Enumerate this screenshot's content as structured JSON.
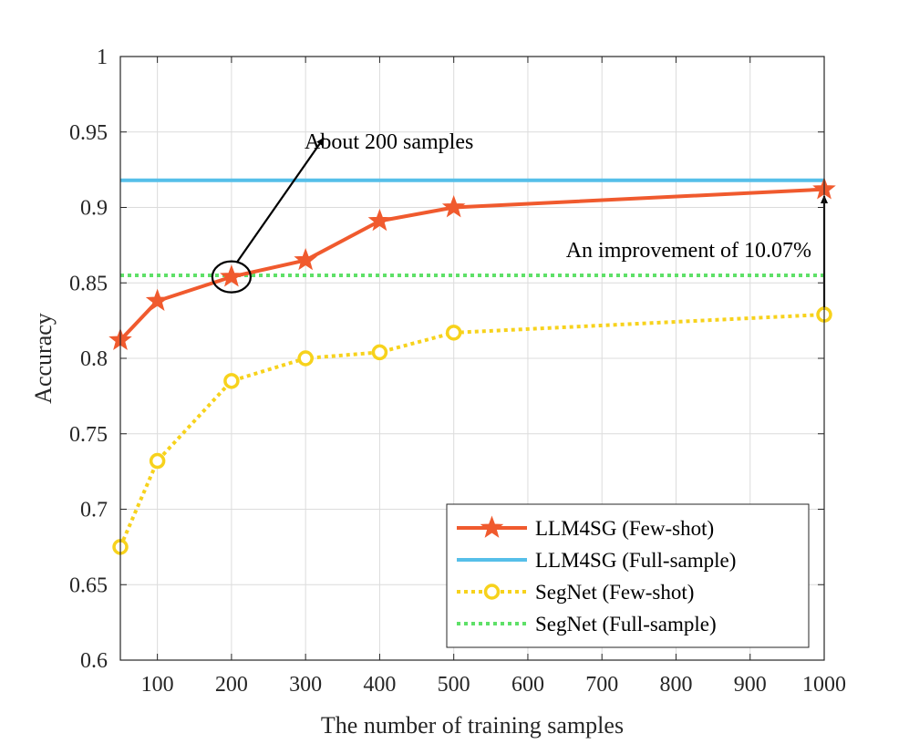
{
  "chart_data": {
    "type": "line",
    "title": "",
    "xlabel": "The number of training samples",
    "ylabel": "Accuracy",
    "xlim": [
      50,
      1000
    ],
    "ylim": [
      0.6,
      1.0
    ],
    "xticks": [
      100,
      200,
      300,
      400,
      500,
      600,
      700,
      800,
      900,
      1000
    ],
    "xtick_labels": [
      "100",
      "200",
      "300",
      "400",
      "500",
      "600",
      "700",
      "800",
      "900",
      "1000"
    ],
    "yticks": [
      0.6,
      0.65,
      0.7,
      0.75,
      0.8,
      0.85,
      0.9,
      0.95,
      1.0
    ],
    "ytick_labels": [
      "0.6",
      "0.65",
      "0.7",
      "0.75",
      "0.8",
      "0.85",
      "0.9",
      "0.95",
      "1"
    ],
    "grid": true,
    "legend_position": "bottom-right",
    "series": [
      {
        "name": "LLM4SG (Few-shot)",
        "color": "#f05a2e",
        "line_style": "solid",
        "marker": "star",
        "x": [
          50,
          100,
          200,
          300,
          400,
          500,
          1000
        ],
        "values": [
          0.812,
          0.838,
          0.854,
          0.865,
          0.891,
          0.9,
          0.912
        ]
      },
      {
        "name": "LLM4SG (Full-sample)",
        "color": "#56bfe9",
        "line_style": "solid",
        "marker": "none",
        "x": [
          50,
          1000
        ],
        "values": [
          0.918,
          0.918
        ]
      },
      {
        "name": "SegNet (Few-shot)",
        "color": "#f7d21c",
        "line_style": "dotted",
        "marker": "circle",
        "x": [
          50,
          100,
          200,
          300,
          400,
          500,
          1000
        ],
        "values": [
          0.675,
          0.732,
          0.785,
          0.8,
          0.804,
          0.817,
          0.829
        ]
      },
      {
        "name": "SegNet (Full-sample)",
        "color": "#5ee068",
        "line_style": "dotted",
        "marker": "none",
        "x": [
          50,
          1000
        ],
        "values": [
          0.855,
          0.855
        ]
      }
    ],
    "annotations": [
      {
        "text": "About 200 samples",
        "circle_at": {
          "x": 200,
          "y": 0.854
        },
        "arrow_to": {
          "x": 290,
          "y": 0.943
        }
      },
      {
        "text": "An improvement of 10.07%",
        "arrow_from": {
          "x": 1000,
          "y": 0.829
        },
        "arrow_to": {
          "x": 1000,
          "y": 0.91
        }
      }
    ]
  }
}
